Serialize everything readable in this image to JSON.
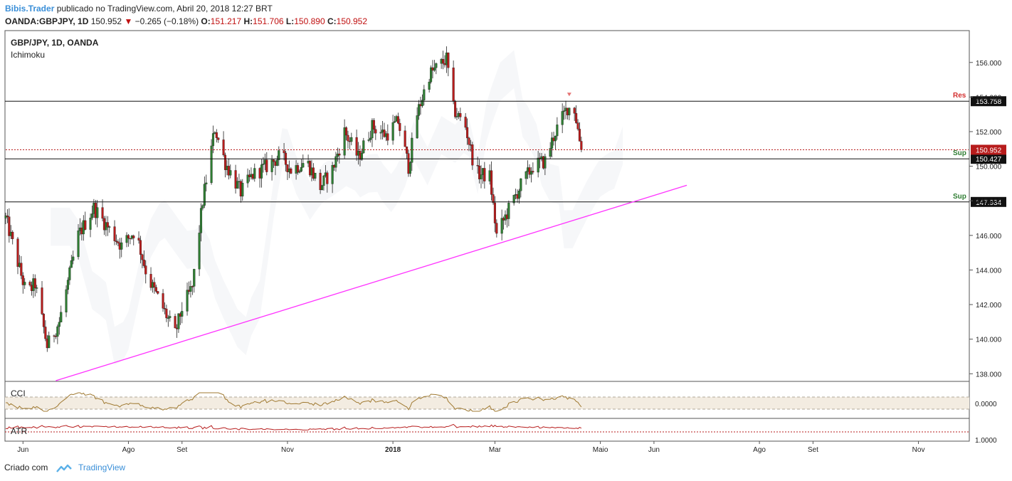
{
  "header": {
    "author": "Bibis.Trader",
    "published_text": "publicado no TradingView.com, Abril 20, 2018 12:27 BRT",
    "symbol": "OANDA:GBPJPY, 1D",
    "last": "150.952",
    "change": "−0.265 (−0.18%)",
    "o_label": "O:",
    "o_value": "151.217",
    "h_label": "H:",
    "h_value": "151.706",
    "l_label": "L:",
    "l_value": "150.890",
    "c_label": "C:",
    "c_value": "150.952"
  },
  "footer": {
    "created_with": "Criado com",
    "brand": "TradingView"
  },
  "chart_data": {
    "type": "candlestick",
    "title": "GBP/JPY, 1D, OANDA",
    "indicator": "Ichimoku",
    "y_ticks": [
      156,
      154,
      152,
      150,
      148,
      146,
      144,
      142,
      140,
      138
    ],
    "y_tick_labels": [
      "156.000",
      "154.000",
      "152.000",
      "150.000",
      "148.000",
      "146.000",
      "144.000",
      "142.000",
      "140.000",
      "138.000"
    ],
    "ylim": [
      137.6,
      157.8
    ],
    "x_range": [
      "2017-05-22",
      "2018-11-30"
    ],
    "x_ticks": [
      {
        "label": "Jun",
        "date": "2017-06-01"
      },
      {
        "label": "Ago",
        "date": "2017-08-01"
      },
      {
        "label": "Set",
        "date": "2017-09-01"
      },
      {
        "label": "Nov",
        "date": "2017-11-01"
      },
      {
        "label": "2018",
        "date": "2018-01-01"
      },
      {
        "label": "Mar",
        "date": "2018-03-01"
      },
      {
        "label": "Maio",
        "date": "2018-05-01"
      },
      {
        "label": "Jun",
        "date": "2018-06-01"
      },
      {
        "label": "Ago",
        "date": "2018-08-01"
      },
      {
        "label": "Set",
        "date": "2018-09-01"
      },
      {
        "label": "Nov",
        "date": "2018-11-01"
      }
    ],
    "price_path": [
      [
        "2017-05-22",
        147.0
      ],
      [
        "2017-06-03",
        142.6
      ],
      [
        "2017-06-08",
        143.2
      ],
      [
        "2017-06-15",
        139.6
      ],
      [
        "2017-06-22",
        141.0
      ],
      [
        "2017-07-03",
        146.0
      ],
      [
        "2017-07-12",
        147.6
      ],
      [
        "2017-07-22",
        146.2
      ],
      [
        "2017-07-28",
        145.4
      ],
      [
        "2017-08-05",
        146.3
      ],
      [
        "2017-08-12",
        143.6
      ],
      [
        "2017-08-20",
        142.0
      ],
      [
        "2017-08-28",
        140.3
      ],
      [
        "2017-09-01",
        141.8
      ],
      [
        "2017-09-07",
        143.0
      ],
      [
        "2017-09-13",
        148.0
      ],
      [
        "2017-09-20",
        152.2
      ],
      [
        "2017-09-26",
        150.2
      ],
      [
        "2017-10-05",
        148.5
      ],
      [
        "2017-10-12",
        149.5
      ],
      [
        "2017-10-20",
        150.0
      ],
      [
        "2017-10-28",
        150.6
      ],
      [
        "2017-11-03",
        149.8
      ],
      [
        "2017-11-12",
        150.3
      ],
      [
        "2017-11-20",
        148.8
      ],
      [
        "2017-11-27",
        149.8
      ],
      [
        "2017-12-04",
        152.0
      ],
      [
        "2017-12-12",
        150.5
      ],
      [
        "2017-12-20",
        152.3
      ],
      [
        "2017-12-28",
        151.8
      ],
      [
        "2018-01-04",
        152.6
      ],
      [
        "2018-01-10",
        150.0
      ],
      [
        "2018-01-15",
        153.0
      ],
      [
        "2018-01-22",
        155.3
      ],
      [
        "2018-02-01",
        156.2
      ],
      [
        "2018-02-05",
        153.3
      ],
      [
        "2018-02-12",
        152.3
      ],
      [
        "2018-02-18",
        149.6
      ],
      [
        "2018-02-26",
        149.4
      ],
      [
        "2018-03-02",
        146.0
      ],
      [
        "2018-03-09",
        147.5
      ],
      [
        "2018-03-16",
        148.9
      ],
      [
        "2018-03-23",
        150.0
      ],
      [
        "2018-03-30",
        150.3
      ],
      [
        "2018-04-05",
        152.0
      ],
      [
        "2018-04-12",
        153.4
      ],
      [
        "2018-04-16",
        153.3
      ],
      [
        "2018-04-20",
        150.95
      ]
    ],
    "horizontal_levels": [
      {
        "value": 153.758,
        "label": "153.758",
        "tag": "Res",
        "tag_color": "#d32f2f"
      },
      {
        "value": 150.427,
        "label": "150.427",
        "tag": "Sup",
        "tag_color": "#2e7d32"
      },
      {
        "value": 147.934,
        "label": "147.934",
        "tag": "Sup",
        "tag_color": "#2e7d32"
      }
    ],
    "current_price": {
      "value": 150.952,
      "label": "150.952"
    },
    "trendline": {
      "start": [
        "2017-06-20",
        137.6
      ],
      "end": [
        "2018-06-20",
        148.9
      ],
      "color": "#ff33ff"
    },
    "resistance_marker_date": "2018-04-13",
    "cci": {
      "name": "CCI",
      "tick_label": "0.0000"
    },
    "atr": {
      "name": "ATR",
      "tick_label": "1.0000"
    }
  }
}
